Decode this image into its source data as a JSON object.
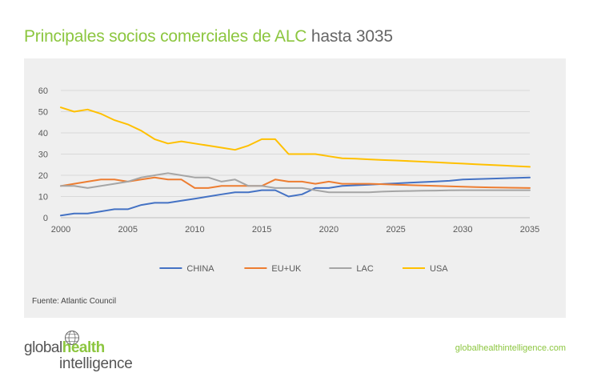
{
  "title": {
    "part1": "Principales socios comerciales de ALC",
    "part2": " hasta 3035"
  },
  "source": "Fuente: Atlantic Council",
  "logo": {
    "word1": "global",
    "word2": "health",
    "word3": "intelligence"
  },
  "website": "globalhealthintelligence.com",
  "colors": {
    "accent": "#8cc63f",
    "panel": "#efefef"
  },
  "chart_data": {
    "type": "line",
    "title": "Principales socios comerciales de ALC hasta 3035",
    "xlim": [
      2000,
      2035
    ],
    "ylim": [
      0,
      60
    ],
    "x_ticks": [
      2000,
      2005,
      2010,
      2015,
      2020,
      2025,
      2030,
      2035
    ],
    "y_ticks": [
      0,
      10,
      20,
      30,
      40,
      50,
      60
    ],
    "grid": true,
    "legend_position": "bottom",
    "x": [
      2000,
      2001,
      2002,
      2003,
      2004,
      2005,
      2006,
      2007,
      2008,
      2009,
      2010,
      2011,
      2012,
      2013,
      2014,
      2015,
      2016,
      2017,
      2018,
      2019,
      2020,
      2021,
      2022,
      2023,
      2024,
      2025,
      2026,
      2027,
      2028,
      2029,
      2030,
      2031,
      2032,
      2033,
      2034,
      2035
    ],
    "series": [
      {
        "name": "CHINA",
        "color": "#4472c4",
        "values": [
          1,
          2,
          2,
          3,
          4,
          4,
          6,
          7,
          7,
          8,
          9,
          10,
          11,
          12,
          12,
          13,
          13,
          10,
          11,
          14,
          14,
          15,
          15.3,
          15.6,
          15.9,
          16.2,
          16.5,
          16.8,
          17.1,
          17.4,
          18,
          18.2,
          18.4,
          18.6,
          18.8,
          19
        ]
      },
      {
        "name": "EU+UK",
        "color": "#ed7d31",
        "values": [
          15,
          16,
          17,
          18,
          18,
          17,
          18,
          19,
          18,
          18,
          14,
          14,
          15,
          15,
          15,
          15,
          18,
          17,
          17,
          16,
          17,
          16,
          16,
          16,
          15.8,
          15.6,
          15.4,
          15.2,
          15,
          14.8,
          14.6,
          14.4,
          14.3,
          14.2,
          14.1,
          14
        ]
      },
      {
        "name": "LAC",
        "color": "#a5a5a5",
        "values": [
          15,
          15,
          14,
          15,
          16,
          17,
          19,
          20,
          21,
          20,
          19,
          19,
          17,
          18,
          15,
          15,
          14,
          14,
          14,
          13,
          12,
          12,
          12,
          12,
          12.3,
          12.5,
          12.6,
          12.7,
          12.8,
          12.9,
          13,
          13,
          13,
          13,
          13,
          13
        ]
      },
      {
        "name": "USA",
        "color": "#ffc000",
        "values": [
          52,
          50,
          51,
          49,
          46,
          44,
          41,
          37,
          35,
          36,
          35,
          34,
          33,
          32,
          34,
          37,
          37,
          30,
          30,
          30,
          29,
          28,
          27.8,
          27.5,
          27.2,
          27,
          26.7,
          26.4,
          26.1,
          25.8,
          25.5,
          25.2,
          24.9,
          24.6,
          24.3,
          24
        ]
      }
    ]
  }
}
